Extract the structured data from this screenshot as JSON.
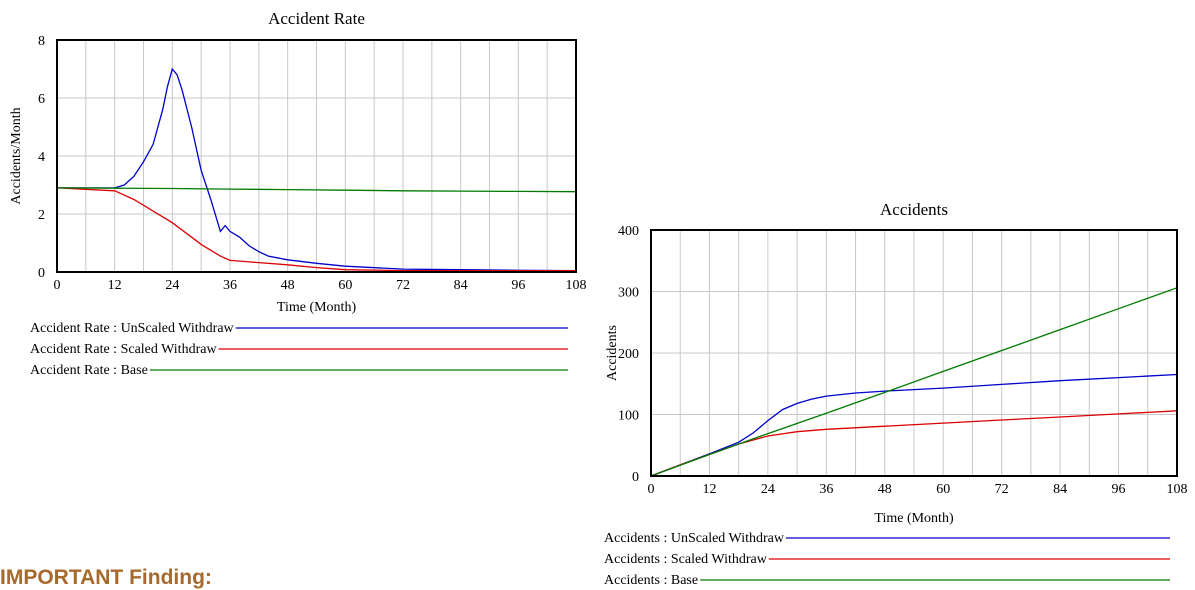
{
  "finding_heading": "IMPORTANT Finding:",
  "chart_data": [
    {
      "type": "line",
      "title": "Accident Rate",
      "xlabel": "Time (Month)",
      "ylabel": "Accidents/Month",
      "xlim": [
        0,
        108
      ],
      "ylim": [
        0,
        8
      ],
      "x_ticks": [
        "0",
        "12",
        "24",
        "36",
        "48",
        "60",
        "72",
        "84",
        "96",
        "108"
      ],
      "y_ticks": [
        "0",
        "2",
        "4",
        "6",
        "8"
      ],
      "grid": true,
      "legend_position": "bottom",
      "series": [
        {
          "name": "Accident Rate : UnScaled Withdraw",
          "color": "#0000cc",
          "x": [
            0,
            12,
            14,
            16,
            18,
            20,
            22,
            23,
            24,
            25,
            26,
            28,
            30,
            32,
            34,
            35,
            36,
            38,
            40,
            42,
            44,
            48,
            54,
            60,
            72,
            84,
            96,
            108
          ],
          "y": [
            2.9,
            2.9,
            3.0,
            3.3,
            3.8,
            4.4,
            5.6,
            6.4,
            7.0,
            6.8,
            6.3,
            5.0,
            3.5,
            2.5,
            1.4,
            1.6,
            1.4,
            1.2,
            0.9,
            0.7,
            0.55,
            0.42,
            0.3,
            0.2,
            0.1,
            0.08,
            0.06,
            0.05
          ]
        },
        {
          "name": "Accident Rate : Scaled Withdraw",
          "color": "#dd0000",
          "x": [
            0,
            12,
            16,
            20,
            24,
            28,
            30,
            32,
            34,
            36,
            40,
            48,
            54,
            60,
            72,
            84,
            96,
            108
          ],
          "y": [
            2.9,
            2.8,
            2.5,
            2.1,
            1.7,
            1.2,
            0.95,
            0.75,
            0.55,
            0.4,
            0.35,
            0.25,
            0.15,
            0.08,
            0.05,
            0.05,
            0.05,
            0.05
          ]
        },
        {
          "name": "Accident Rate : Base",
          "color": "#007a00",
          "x": [
            0,
            12,
            24,
            36,
            48,
            60,
            72,
            84,
            96,
            108
          ],
          "y": [
            2.9,
            2.89,
            2.88,
            2.86,
            2.84,
            2.82,
            2.8,
            2.79,
            2.78,
            2.77
          ]
        }
      ]
    },
    {
      "type": "line",
      "title": "Accidents",
      "xlabel": "Time (Month)",
      "ylabel": "Accidents",
      "xlim": [
        0,
        108
      ],
      "ylim": [
        0,
        400
      ],
      "x_ticks": [
        "0",
        "12",
        "24",
        "36",
        "48",
        "60",
        "72",
        "84",
        "96",
        "108"
      ],
      "y_ticks": [
        "0",
        "100",
        "200",
        "300",
        "400"
      ],
      "grid": true,
      "legend_position": "bottom",
      "series": [
        {
          "name": "Accidents : UnScaled Withdraw",
          "color": "#0000cc",
          "x": [
            0,
            6,
            12,
            18,
            21,
            24,
            27,
            30,
            33,
            36,
            42,
            48,
            60,
            72,
            84,
            96,
            108
          ],
          "y": [
            0,
            18,
            36,
            55,
            70,
            90,
            108,
            118,
            125,
            130,
            135,
            138,
            143,
            149,
            155,
            160,
            165
          ]
        },
        {
          "name": "Accidents : Scaled Withdraw",
          "color": "#dd0000",
          "x": [
            0,
            6,
            12,
            18,
            24,
            30,
            36,
            48,
            60,
            72,
            84,
            96,
            108
          ],
          "y": [
            0,
            18,
            35,
            52,
            65,
            72,
            76,
            81,
            86,
            91,
            96,
            101,
            106
          ]
        },
        {
          "name": "Accidents : Base",
          "color": "#007a00",
          "x": [
            0,
            12,
            24,
            36,
            48,
            60,
            72,
            84,
            96,
            108
          ],
          "y": [
            0,
            35,
            69,
            102,
            136,
            170,
            204,
            238,
            272,
            306
          ]
        }
      ]
    }
  ]
}
